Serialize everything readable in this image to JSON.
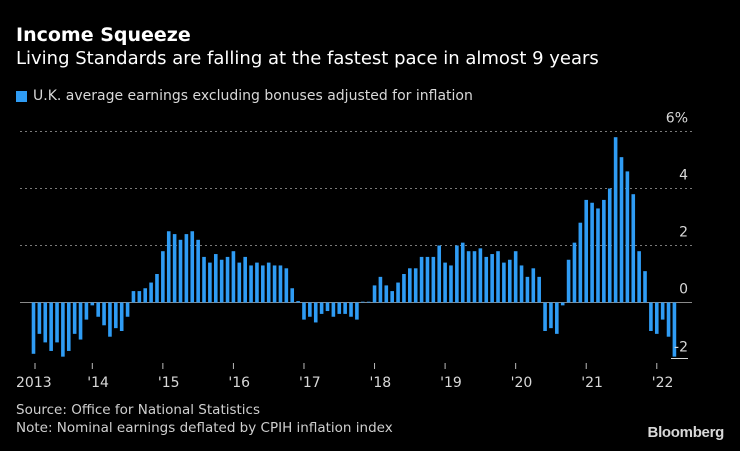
{
  "header": {
    "title": "Income Squeeze",
    "subtitle": "Living Standards are falling at the fastest pace in almost 9 years"
  },
  "legend": {
    "label": "U.K. average earnings excluding bonuses adjusted for inflation",
    "color": "#2f9cf4"
  },
  "footer": {
    "source": "Source: Office for National Statistics",
    "note": "Note: Nominal earnings deflated by CPIH inflation index",
    "brand": "Bloomberg"
  },
  "chart_data": {
    "type": "bar",
    "title": "Income Squeeze",
    "subtitle": "Living Standards are falling at the fastest pace in almost 9 years",
    "xlabel": "",
    "ylabel": "",
    "ylim": [
      -2,
      6
    ],
    "y_ticks": [
      {
        "value": 6,
        "label": "6%"
      },
      {
        "value": 4,
        "label": "4"
      },
      {
        "value": 2,
        "label": "2"
      },
      {
        "value": 0,
        "label": "0"
      },
      {
        "value": -2,
        "label": "-2"
      }
    ],
    "x_ticks": [
      {
        "index": 0,
        "label": "2013"
      },
      {
        "index": 10,
        "label": "'14"
      },
      {
        "index": 22,
        "label": "'15"
      },
      {
        "index": 34,
        "label": "'16"
      },
      {
        "index": 46,
        "label": "'17"
      },
      {
        "index": 58,
        "label": "'18"
      },
      {
        "index": 70,
        "label": "'19"
      },
      {
        "index": 82,
        "label": "'20"
      },
      {
        "index": 94,
        "label": "'21"
      },
      {
        "index": 106,
        "label": "'22"
      }
    ],
    "grid": true,
    "legend_position": "top-left",
    "series": [
      {
        "name": "U.K. average earnings excluding bonuses adjusted for inflation",
        "color": "#2f9cf4",
        "values": [
          -1.8,
          -1.1,
          -1.4,
          -1.7,
          -1.4,
          -1.9,
          -1.7,
          -1.1,
          -1.3,
          -0.6,
          -0.1,
          -0.5,
          -0.8,
          -1.2,
          -0.9,
          -1.0,
          -0.5,
          0.4,
          0.4,
          0.5,
          0.7,
          1.0,
          1.8,
          2.5,
          2.4,
          2.2,
          2.4,
          2.5,
          2.2,
          1.6,
          1.4,
          1.7,
          1.5,
          1.6,
          1.8,
          1.4,
          1.6,
          1.3,
          1.4,
          1.3,
          1.4,
          1.3,
          1.3,
          1.2,
          0.5,
          0.05,
          -0.6,
          -0.5,
          -0.7,
          -0.4,
          -0.3,
          -0.5,
          -0.4,
          -0.4,
          -0.5,
          -0.6,
          0.0,
          0.0,
          0.6,
          0.9,
          0.6,
          0.4,
          0.7,
          1.0,
          1.2,
          1.2,
          1.6,
          1.6,
          1.6,
          2.0,
          1.4,
          1.3,
          2.0,
          2.1,
          1.8,
          1.8,
          1.9,
          1.6,
          1.7,
          1.8,
          1.4,
          1.5,
          1.8,
          1.3,
          0.9,
          1.2,
          0.9,
          -1.0,
          -0.9,
          -1.1,
          -0.1,
          1.5,
          2.1,
          2.8,
          3.6,
          3.5,
          3.3,
          3.6,
          4.0,
          5.8,
          5.1,
          4.6,
          3.8,
          1.8,
          1.1,
          -1.0,
          -1.1,
          -0.6,
          -1.2,
          -1.9
        ]
      }
    ]
  }
}
